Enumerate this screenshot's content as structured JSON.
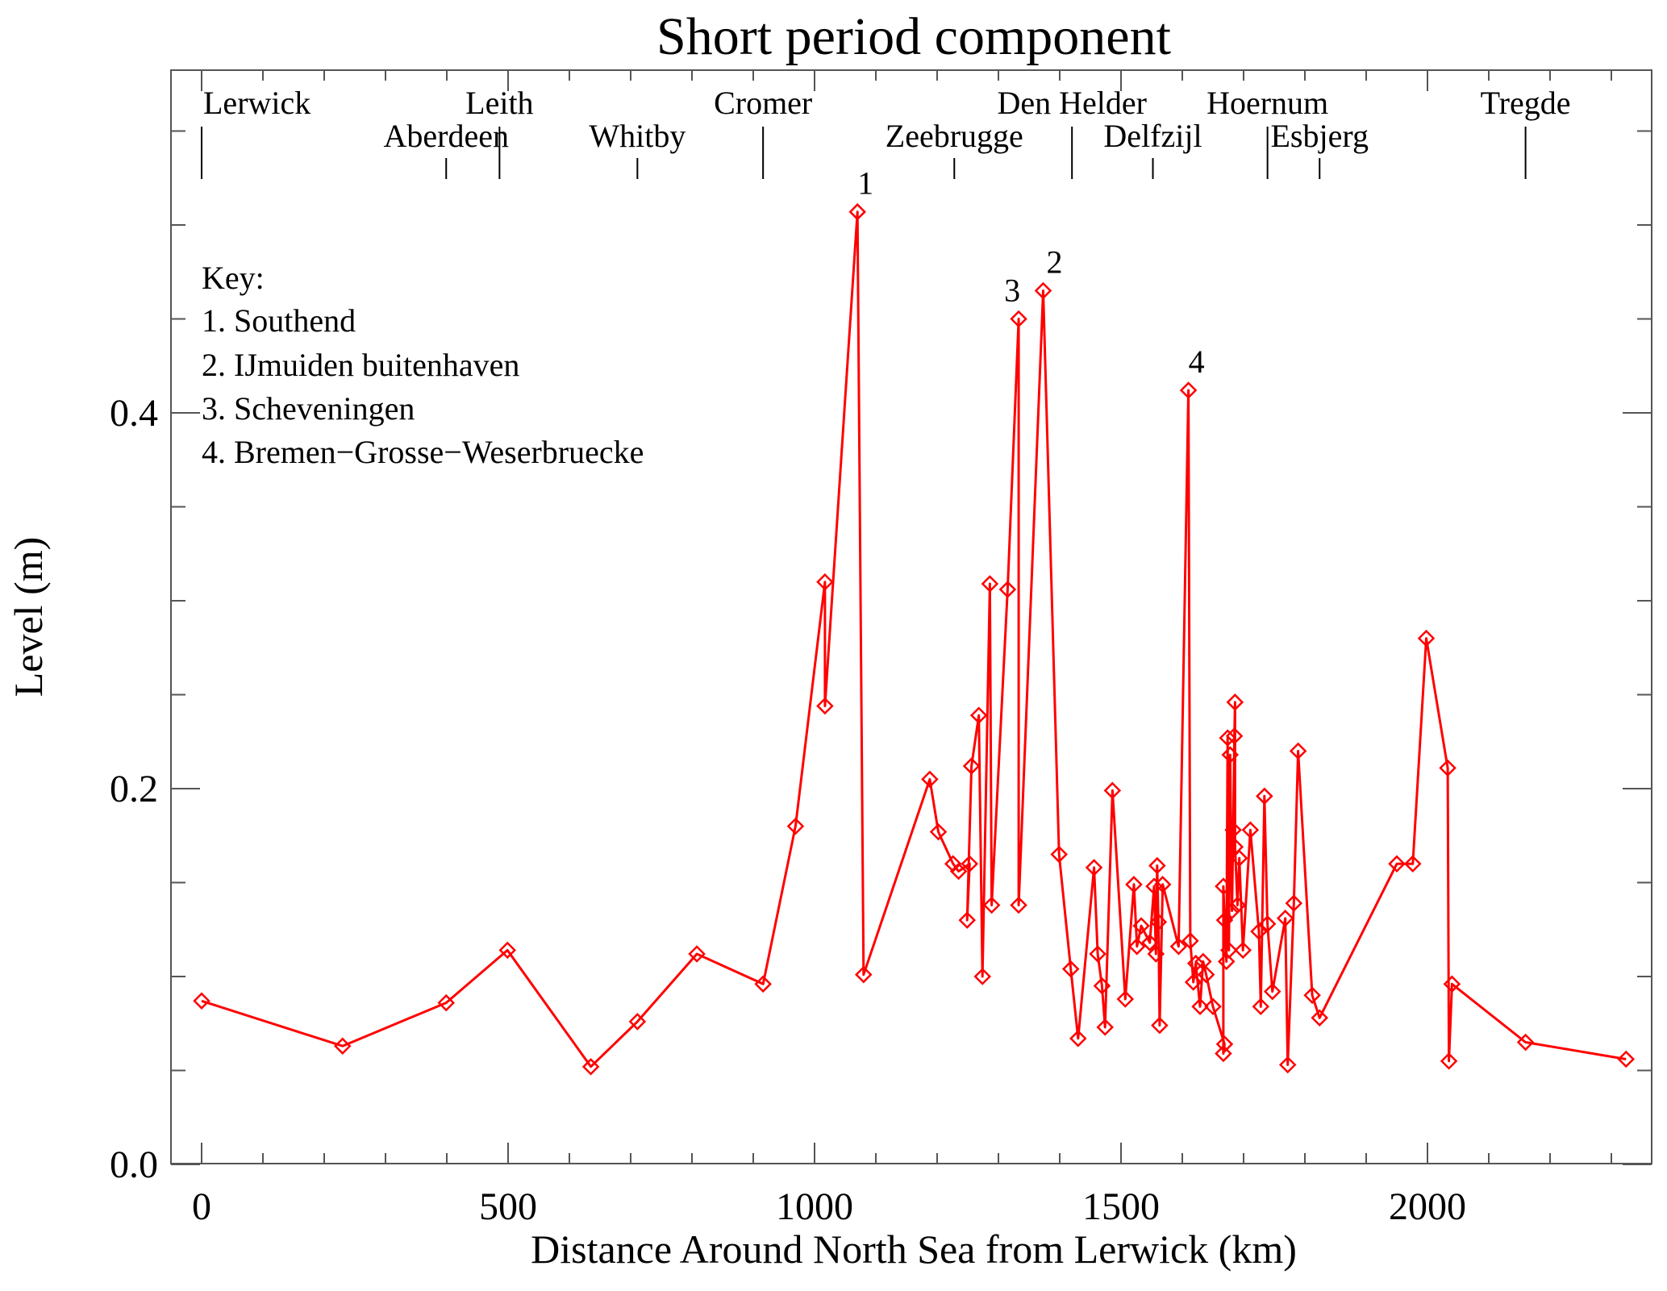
{
  "chart_data": {
    "type": "line",
    "title": "Short period component",
    "xlabel": "Distance Around North Sea from Lerwick (km)",
    "ylabel": "Level (m)",
    "xlim": [
      -50,
      2366
    ],
    "ylim": [
      0.0,
      0.582
    ],
    "x_ticks": [
      0,
      500,
      1000,
      1500,
      2000
    ],
    "x_tick_labels": [
      "0",
      "500",
      "1000",
      "1500",
      "2000"
    ],
    "y_ticks": [
      0.0,
      0.2,
      0.4
    ],
    "y_tick_labels": [
      "0.0",
      "0.2",
      "0.4"
    ],
    "grid": false,
    "series_color": "#ff0000",
    "marker": "diamond",
    "stations": [
      {
        "name": "Lerwick",
        "km": 0,
        "row": 1
      },
      {
        "name": "Aberdeen",
        "km": 399,
        "row": 2
      },
      {
        "name": "Leith",
        "km": 486,
        "row": 1
      },
      {
        "name": "Whitby",
        "km": 711,
        "row": 2
      },
      {
        "name": "Cromer",
        "km": 916,
        "row": 1
      },
      {
        "name": "Zeebrugge",
        "km": 1228,
        "row": 2
      },
      {
        "name": "Den Helder",
        "km": 1420,
        "row": 1
      },
      {
        "name": "Delfzijl",
        "km": 1552,
        "row": 2
      },
      {
        "name": "Hoernum",
        "km": 1739,
        "row": 1
      },
      {
        "name": "Esbjerg",
        "km": 1824,
        "row": 2
      },
      {
        "name": "Tregde",
        "km": 2160,
        "row": 1
      }
    ],
    "annotations": [
      {
        "label": "1",
        "x": 1070,
        "y": 0.507
      },
      {
        "label": "2",
        "x": 1373,
        "y": 0.465
      },
      {
        "label": "3",
        "x": 1333,
        "y": 0.45
      },
      {
        "label": "4",
        "x": 1610,
        "y": 0.412
      }
    ],
    "key": {
      "title": "Key:",
      "items": [
        "1. Southend",
        "2. IJmuiden buitenhaven",
        "3. Scheveningen",
        "4. Bremen−Grosse−Weserbruecke"
      ]
    },
    "series": [
      {
        "name": "Short period component",
        "x": [
          0,
          230,
          399,
          499,
          635,
          711,
          808,
          916,
          969,
          1017,
          1017,
          1070,
          1080,
          1188,
          1202,
          1226,
          1235,
          1253,
          1249,
          1256,
          1268,
          1274,
          1286,
          1289,
          1315,
          1333,
          1333,
          1373,
          1399,
          1418,
          1430,
          1456,
          1462,
          1469,
          1474,
          1486,
          1507,
          1521,
          1526,
          1533,
          1547,
          1554,
          1557,
          1559,
          1561,
          1563,
          1568,
          1594,
          1610,
          1613,
          1618,
          1622,
          1629,
          1634,
          1639,
          1650,
          1669,
          1667,
          1667,
          1669,
          1672,
          1674,
          1676,
          1678,
          1681,
          1683,
          1685,
          1686,
          1686,
          1690,
          1693,
          1699,
          1711,
          1725,
          1728,
          1734,
          1739,
          1747,
          1768,
          1772,
          1782,
          1789,
          1812,
          1824,
          1950,
          1976,
          1998,
          2033,
          2035,
          2040,
          2160,
          2324
        ],
        "y": [
          0.087,
          0.063,
          0.086,
          0.114,
          0.052,
          0.076,
          0.112,
          0.096,
          0.18,
          0.31,
          0.244,
          0.507,
          0.101,
          0.205,
          0.177,
          0.16,
          0.156,
          0.16,
          0.13,
          0.212,
          0.239,
          0.1,
          0.309,
          0.138,
          0.306,
          0.45,
          0.138,
          0.465,
          0.165,
          0.104,
          0.067,
          0.158,
          0.112,
          0.095,
          0.073,
          0.199,
          0.088,
          0.149,
          0.116,
          0.127,
          0.118,
          0.148,
          0.112,
          0.159,
          0.129,
          0.074,
          0.149,
          0.116,
          0.412,
          0.119,
          0.097,
          0.107,
          0.084,
          0.108,
          0.101,
          0.084,
          0.064,
          0.059,
          0.148,
          0.13,
          0.108,
          0.227,
          0.114,
          0.218,
          0.135,
          0.178,
          0.228,
          0.246,
          0.169,
          0.138,
          0.163,
          0.114,
          0.178,
          0.124,
          0.084,
          0.196,
          0.128,
          0.092,
          0.131,
          0.053,
          0.139,
          0.22,
          0.09,
          0.078,
          0.16,
          0.16,
          0.28,
          0.211,
          0.055,
          0.096,
          0.065,
          0.056
        ]
      }
    ]
  }
}
